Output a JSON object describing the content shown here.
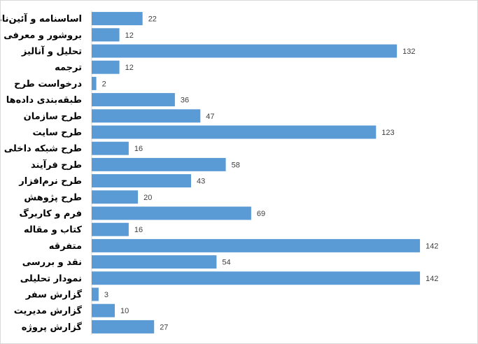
{
  "chart_data": {
    "type": "bar",
    "orientation": "horizontal",
    "title": "",
    "xlabel": "",
    "ylabel": "",
    "grid": false,
    "legend": "none",
    "bar_color": "#5b9bd5",
    "xlim": [
      0,
      145
    ],
    "categories": [
      "اساسنامه و آئین‌نامه",
      "بروشور و معرفی",
      "تحلیل و آنالیز",
      "ترجمه",
      "درخواست طرح",
      "طبقه‌بندی داده‌ها",
      "طرح سازمان",
      "طرح سایت",
      "طرح شبکه داخلی",
      "طرح فرآیند",
      "طرح نرم‌افزار",
      "طرح پژوهش",
      "فرم و کاربرگ",
      "کتاب و مقاله",
      "متفرقه",
      "نقد و بررسی",
      "نمودار تحلیلی",
      "گزارش سفر",
      "گزارش مدیریت",
      "گزارش پروژه"
    ],
    "values": [
      22,
      12,
      132,
      12,
      2,
      36,
      47,
      123,
      16,
      58,
      43,
      20,
      69,
      16,
      142,
      54,
      142,
      3,
      10,
      27
    ]
  }
}
